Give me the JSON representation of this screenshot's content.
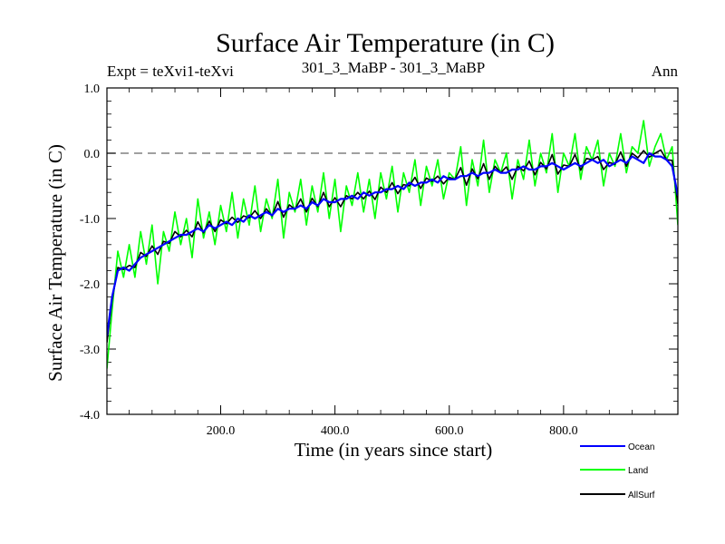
{
  "chart_data": {
    "type": "line",
    "title": "Surface Air Temperature (in C)",
    "subtitle_left": "Expt = teXvi1-teXvi",
    "subtitle_center": "301_3_MaBP - 301_3_MaBP",
    "subtitle_right": "Ann",
    "xlabel": "Time (in years since start)",
    "ylabel": "Surface Air Temperature (in C)",
    "xlim": [
      1,
      1000
    ],
    "ylim": [
      -4.0,
      1.0
    ],
    "x_ticks": [
      200,
      400,
      600,
      800
    ],
    "x_tick_labels": [
      "200.0",
      "400.0",
      "600.0",
      "800.0"
    ],
    "y_ticks": [
      -4.0,
      -3.0,
      -2.0,
      -1.0,
      0.0,
      1.0
    ],
    "y_tick_labels": [
      "-4.0",
      "-3.0",
      "-2.0",
      "-1.0",
      "0.0",
      "1.0"
    ],
    "reference_line": {
      "y": 0.0,
      "style": "dashed",
      "color": "#808080"
    },
    "grid": false,
    "legend_position": "bottom-right",
    "sample_every_years": 10,
    "series": [
      {
        "name": "Ocean",
        "color": "#0000ff",
        "x": [
          1,
          10,
          20,
          30,
          40,
          50,
          60,
          70,
          80,
          90,
          100,
          110,
          120,
          130,
          140,
          150,
          160,
          170,
          180,
          190,
          200,
          210,
          220,
          230,
          240,
          250,
          260,
          270,
          280,
          290,
          300,
          310,
          320,
          330,
          340,
          350,
          360,
          370,
          380,
          390,
          400,
          410,
          420,
          430,
          440,
          450,
          460,
          470,
          480,
          490,
          500,
          510,
          520,
          530,
          540,
          550,
          560,
          570,
          580,
          590,
          600,
          610,
          620,
          630,
          640,
          650,
          660,
          670,
          680,
          690,
          700,
          710,
          720,
          730,
          740,
          750,
          760,
          770,
          780,
          790,
          800,
          810,
          820,
          830,
          840,
          850,
          860,
          870,
          880,
          890,
          900,
          910,
          920,
          930,
          940,
          950,
          960,
          970,
          980,
          990,
          1000
        ],
        "values": [
          -2.8,
          -2.2,
          -1.8,
          -1.75,
          -1.8,
          -1.7,
          -1.6,
          -1.55,
          -1.5,
          -1.45,
          -1.4,
          -1.35,
          -1.3,
          -1.25,
          -1.25,
          -1.2,
          -1.15,
          -1.2,
          -1.1,
          -1.15,
          -1.1,
          -1.05,
          -1.1,
          -1.0,
          -1.05,
          -0.95,
          -1.0,
          -0.95,
          -0.9,
          -0.95,
          -0.85,
          -0.9,
          -0.85,
          -0.85,
          -0.8,
          -0.85,
          -0.75,
          -0.8,
          -0.7,
          -0.75,
          -0.75,
          -0.7,
          -0.7,
          -0.65,
          -0.7,
          -0.6,
          -0.65,
          -0.6,
          -0.6,
          -0.55,
          -0.55,
          -0.5,
          -0.55,
          -0.45,
          -0.5,
          -0.45,
          -0.45,
          -0.4,
          -0.45,
          -0.35,
          -0.4,
          -0.4,
          -0.35,
          -0.35,
          -0.3,
          -0.35,
          -0.3,
          -0.3,
          -0.25,
          -0.3,
          -0.3,
          -0.25,
          -0.25,
          -0.2,
          -0.25,
          -0.25,
          -0.2,
          -0.2,
          -0.15,
          -0.2,
          -0.25,
          -0.2,
          -0.15,
          -0.2,
          -0.15,
          -0.1,
          -0.15,
          -0.1,
          -0.2,
          -0.15,
          -0.1,
          -0.15,
          -0.05,
          -0.1,
          -0.15,
          0.0,
          -0.05,
          -0.05,
          -0.1,
          -0.2,
          -0.65
        ]
      },
      {
        "name": "Land",
        "color": "#00ff00",
        "x": [
          1,
          10,
          20,
          30,
          40,
          50,
          60,
          70,
          80,
          90,
          100,
          110,
          120,
          130,
          140,
          150,
          160,
          170,
          180,
          190,
          200,
          210,
          220,
          230,
          240,
          250,
          260,
          270,
          280,
          290,
          300,
          310,
          320,
          330,
          340,
          350,
          360,
          370,
          380,
          390,
          400,
          410,
          420,
          430,
          440,
          450,
          460,
          470,
          480,
          490,
          500,
          510,
          520,
          530,
          540,
          550,
          560,
          570,
          580,
          590,
          600,
          610,
          620,
          630,
          640,
          650,
          660,
          670,
          680,
          690,
          700,
          710,
          720,
          730,
          740,
          750,
          760,
          770,
          780,
          790,
          800,
          810,
          820,
          830,
          840,
          850,
          860,
          870,
          880,
          890,
          900,
          910,
          920,
          930,
          940,
          950,
          960,
          970,
          980,
          990,
          1000
        ],
        "values": [
          -3.3,
          -2.4,
          -1.5,
          -1.9,
          -1.4,
          -1.9,
          -1.2,
          -1.7,
          -1.1,
          -2.0,
          -1.2,
          -1.5,
          -0.9,
          -1.4,
          -1.0,
          -1.6,
          -0.7,
          -1.3,
          -0.9,
          -1.4,
          -0.8,
          -1.2,
          -0.6,
          -1.3,
          -0.7,
          -1.1,
          -0.5,
          -1.2,
          -0.7,
          -1.0,
          -0.4,
          -1.3,
          -0.6,
          -0.9,
          -0.4,
          -1.1,
          -0.5,
          -0.9,
          -0.3,
          -1.0,
          -0.4,
          -1.2,
          -0.5,
          -0.8,
          -0.3,
          -0.9,
          -0.4,
          -1.0,
          -0.3,
          -0.7,
          -0.2,
          -0.9,
          -0.3,
          -0.6,
          -0.1,
          -0.8,
          -0.2,
          -0.5,
          -0.1,
          -0.7,
          -0.3,
          -0.4,
          0.1,
          -0.8,
          -0.1,
          -0.5,
          0.2,
          -0.6,
          -0.1,
          -0.3,
          0.0,
          -0.7,
          -0.1,
          -0.4,
          0.2,
          -0.5,
          0.0,
          -0.3,
          0.3,
          -0.6,
          0.0,
          -0.2,
          0.3,
          -0.4,
          0.1,
          -0.1,
          0.2,
          -0.5,
          0.0,
          -0.2,
          0.3,
          -0.3,
          0.1,
          0.0,
          0.5,
          -0.2,
          0.1,
          0.3,
          -0.1,
          0.1,
          -1.1
        ]
      },
      {
        "name": "AllSurf",
        "color": "#000000",
        "x": [
          1,
          10,
          20,
          30,
          40,
          50,
          60,
          70,
          80,
          90,
          100,
          110,
          120,
          130,
          140,
          150,
          160,
          170,
          180,
          190,
          200,
          210,
          220,
          230,
          240,
          250,
          260,
          270,
          280,
          290,
          300,
          310,
          320,
          330,
          340,
          350,
          360,
          370,
          380,
          390,
          400,
          410,
          420,
          430,
          440,
          450,
          460,
          470,
          480,
          490,
          500,
          510,
          520,
          530,
          540,
          550,
          560,
          570,
          580,
          590,
          600,
          610,
          620,
          630,
          640,
          650,
          660,
          670,
          680,
          690,
          700,
          710,
          720,
          730,
          740,
          750,
          760,
          770,
          780,
          790,
          800,
          810,
          820,
          830,
          840,
          850,
          860,
          870,
          880,
          890,
          900,
          910,
          920,
          930,
          940,
          950,
          960,
          970,
          980,
          990,
          1000
        ],
        "values": [
          -2.9,
          -2.25,
          -1.75,
          -1.78,
          -1.72,
          -1.75,
          -1.52,
          -1.58,
          -1.42,
          -1.55,
          -1.35,
          -1.38,
          -1.2,
          -1.28,
          -1.18,
          -1.28,
          -1.05,
          -1.22,
          -1.04,
          -1.2,
          -1.02,
          -1.08,
          -0.98,
          -1.06,
          -0.96,
          -0.99,
          -0.88,
          -1.0,
          -0.85,
          -0.96,
          -0.74,
          -0.98,
          -0.79,
          -0.86,
          -0.7,
          -0.9,
          -0.69,
          -0.82,
          -0.6,
          -0.82,
          -0.68,
          -0.82,
          -0.65,
          -0.7,
          -0.6,
          -0.7,
          -0.58,
          -0.71,
          -0.52,
          -0.6,
          -0.45,
          -0.62,
          -0.48,
          -0.5,
          -0.37,
          -0.54,
          -0.38,
          -0.43,
          -0.35,
          -0.47,
          -0.37,
          -0.4,
          -0.22,
          -0.49,
          -0.24,
          -0.39,
          -0.16,
          -0.4,
          -0.2,
          -0.3,
          -0.21,
          -0.4,
          -0.2,
          -0.27,
          -0.12,
          -0.33,
          -0.14,
          -0.24,
          -0.02,
          -0.32,
          -0.18,
          -0.2,
          -0.02,
          -0.26,
          -0.08,
          -0.1,
          -0.05,
          -0.25,
          -0.14,
          -0.17,
          0.02,
          -0.2,
          0.0,
          -0.07,
          0.04,
          -0.06,
          0.0,
          0.05,
          -0.1,
          -0.11,
          -0.78
        ]
      }
    ]
  }
}
